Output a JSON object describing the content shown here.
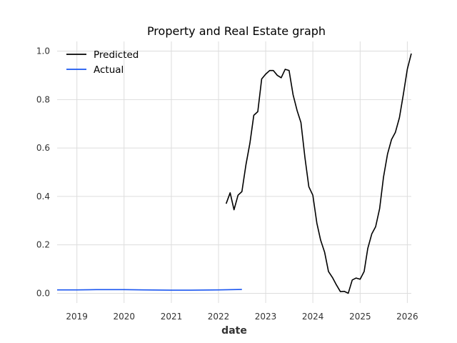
{
  "chart_data": {
    "type": "line",
    "title": "Property and Real Estate graph",
    "xlabel": "date",
    "ylabel": "",
    "x_type": "date",
    "xlim": [
      "2018-08-01",
      "2026-02-01"
    ],
    "ylim": [
      -0.04,
      1.04
    ],
    "x_ticks": [
      "2019-01-01",
      "2020-01-01",
      "2021-01-01",
      "2022-01-01",
      "2023-01-01",
      "2024-01-01",
      "2025-01-01",
      "2026-01-01"
    ],
    "x_tick_labels": [
      "2019",
      "2020",
      "2021",
      "2022",
      "2023",
      "2024",
      "2025",
      "2026"
    ],
    "y_ticks": [
      0.0,
      0.2,
      0.4,
      0.6,
      0.8,
      1.0
    ],
    "y_tick_labels": [
      "0.0",
      "0.2",
      "0.4",
      "0.6",
      "0.8",
      "1.0"
    ],
    "grid": true,
    "legend_position": "top-left",
    "series": [
      {
        "name": "Predicted",
        "color": "#000000",
        "points": [
          [
            "2022-03-01",
            0.37
          ],
          [
            "2022-04-01",
            0.415
          ],
          [
            "2022-05-01",
            0.345
          ],
          [
            "2022-06-01",
            0.405
          ],
          [
            "2022-07-01",
            0.42
          ],
          [
            "2022-08-01",
            0.53
          ],
          [
            "2022-09-01",
            0.62
          ],
          [
            "2022-10-01",
            0.735
          ],
          [
            "2022-11-01",
            0.75
          ],
          [
            "2022-12-01",
            0.885
          ],
          [
            "2023-01-01",
            0.905
          ],
          [
            "2023-02-01",
            0.92
          ],
          [
            "2023-03-01",
            0.92
          ],
          [
            "2023-04-01",
            0.9
          ],
          [
            "2023-05-01",
            0.89
          ],
          [
            "2023-06-01",
            0.925
          ],
          [
            "2023-07-01",
            0.92
          ],
          [
            "2023-08-01",
            0.82
          ],
          [
            "2023-09-01",
            0.755
          ],
          [
            "2023-10-01",
            0.705
          ],
          [
            "2023-11-01",
            0.56
          ],
          [
            "2023-12-01",
            0.44
          ],
          [
            "2024-01-01",
            0.405
          ],
          [
            "2024-02-01",
            0.29
          ],
          [
            "2024-03-01",
            0.22
          ],
          [
            "2024-04-01",
            0.17
          ],
          [
            "2024-05-01",
            0.09
          ],
          [
            "2024-06-01",
            0.065
          ],
          [
            "2024-07-01",
            0.035
          ],
          [
            "2024-08-01",
            0.007
          ],
          [
            "2024-09-01",
            0.008
          ],
          [
            "2024-10-01",
            0.0
          ],
          [
            "2024-11-01",
            0.055
          ],
          [
            "2024-12-01",
            0.063
          ],
          [
            "2025-01-01",
            0.058
          ],
          [
            "2025-02-01",
            0.09
          ],
          [
            "2025-03-01",
            0.185
          ],
          [
            "2025-04-01",
            0.245
          ],
          [
            "2025-05-01",
            0.275
          ],
          [
            "2025-06-01",
            0.35
          ],
          [
            "2025-07-01",
            0.48
          ],
          [
            "2025-08-01",
            0.575
          ],
          [
            "2025-09-01",
            0.635
          ],
          [
            "2025-10-01",
            0.665
          ],
          [
            "2025-11-01",
            0.725
          ],
          [
            "2025-12-01",
            0.82
          ],
          [
            "2026-01-01",
            0.925
          ],
          [
            "2026-02-01",
            0.99
          ]
        ]
      },
      {
        "name": "Actual",
        "color": "#1a56f0",
        "points": [
          [
            "2018-08-01",
            0.014
          ],
          [
            "2019-01-01",
            0.014
          ],
          [
            "2019-06-01",
            0.015
          ],
          [
            "2020-01-01",
            0.015
          ],
          [
            "2020-06-01",
            0.014
          ],
          [
            "2021-01-01",
            0.013
          ],
          [
            "2021-06-01",
            0.013
          ],
          [
            "2022-01-01",
            0.014
          ],
          [
            "2022-07-01",
            0.016
          ]
        ]
      }
    ]
  }
}
